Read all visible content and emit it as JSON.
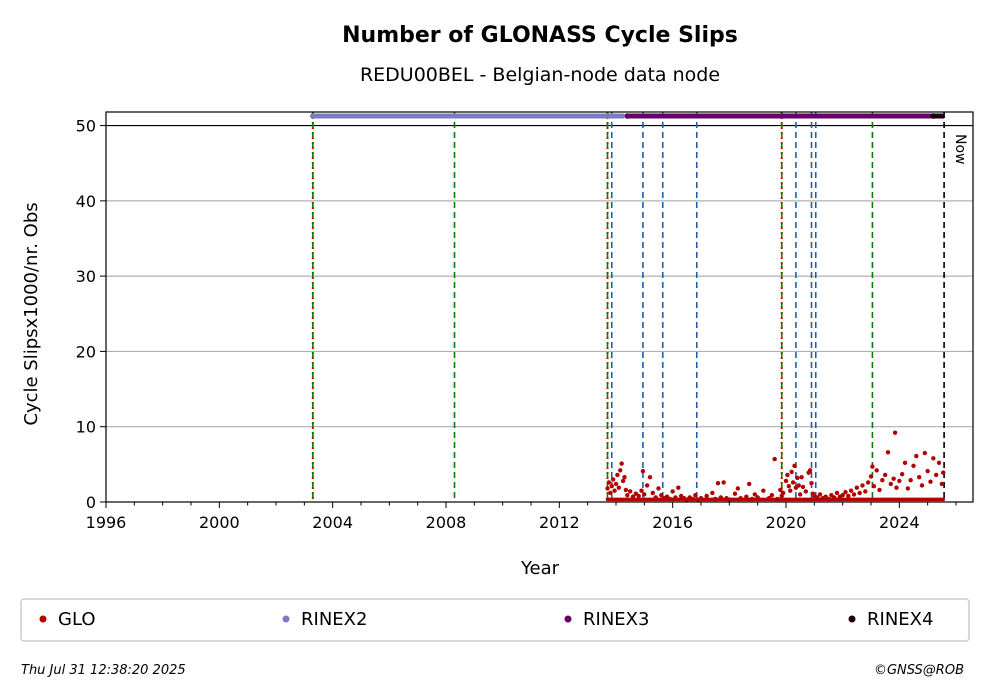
{
  "chart_data": {
    "type": "scatter",
    "title": "Number of GLONASS Cycle Slips",
    "subtitle": "REDU00BEL - Belgian-node data node",
    "xlabel": "Year",
    "ylabel": "Cycle Slipsx1000/nr. Obs",
    "xlim": [
      1996.0,
      2026.6
    ],
    "ylim": [
      0,
      51.8
    ],
    "xticks": [
      1996,
      2000,
      2004,
      2008,
      2012,
      2016,
      2020,
      2024
    ],
    "xtick_labels": [
      "1996",
      "2000",
      "2004",
      "2008",
      "2012",
      "2016",
      "2020",
      "2024"
    ],
    "yticks": [
      0,
      10,
      20,
      30,
      40,
      50
    ],
    "ytick_labels": [
      "0",
      "10",
      "20",
      "30",
      "40",
      "50"
    ],
    "grid": "horizontal",
    "reference_line_y": 50,
    "now_label": "Now",
    "now_x": 2025.58,
    "vlines": [
      {
        "x": 2003.3,
        "colors": [
          "#cc0000",
          "#008000"
        ],
        "style": "dotted-dashed"
      },
      {
        "x": 2008.3,
        "colors": [
          "#008000"
        ],
        "style": "dashed"
      },
      {
        "x": 2013.7,
        "colors": [
          "#cc0000",
          "#008000"
        ],
        "style": "dotted-dashed"
      },
      {
        "x": 2013.85,
        "colors": [
          "#1f5fa8"
        ],
        "style": "dashed"
      },
      {
        "x": 2014.95,
        "colors": [
          "#1f5fa8"
        ],
        "style": "dashed"
      },
      {
        "x": 2015.65,
        "colors": [
          "#1f5fa8"
        ],
        "style": "dashed"
      },
      {
        "x": 2016.85,
        "colors": [
          "#1f5fa8"
        ],
        "style": "dashed"
      },
      {
        "x": 2019.85,
        "colors": [
          "#cc0000",
          "#008000"
        ],
        "style": "dotted-dashed"
      },
      {
        "x": 2020.35,
        "colors": [
          "#1f5fa8"
        ],
        "style": "dashed"
      },
      {
        "x": 2020.9,
        "colors": [
          "#1f5fa8"
        ],
        "style": "dashed"
      },
      {
        "x": 2021.05,
        "colors": [
          "#1f5fa8"
        ],
        "style": "dashed"
      },
      {
        "x": 2023.05,
        "colors": [
          "#008000"
        ],
        "style": "dashed"
      },
      {
        "x": 2025.58,
        "colors": [
          "#000000"
        ],
        "style": "dashed"
      }
    ],
    "rinex_bars": [
      {
        "name": "RINEX2",
        "color": "#7b7bbf",
        "start": 2003.3,
        "end": 2014.3,
        "y": 51
      },
      {
        "name": "RINEX3",
        "color": "#660066",
        "start": 2014.4,
        "end": 2025.3,
        "y": 51
      },
      {
        "name": "RINEX4",
        "color": "#1a0010",
        "start": 2025.2,
        "end": 2025.58,
        "y": 51
      }
    ],
    "series": [
      {
        "name": "GLO",
        "color": "#b30000",
        "coverage": [
          2013.7,
          2025.58
        ],
        "points": [
          [
            2013.7,
            1.8
          ],
          [
            2013.75,
            2.6
          ],
          [
            2013.8,
            1.2
          ],
          [
            2013.85,
            2.1
          ],
          [
            2013.9,
            3.0
          ],
          [
            2013.95,
            1.5
          ],
          [
            2014.0,
            2.4
          ],
          [
            2014.05,
            3.6
          ],
          [
            2014.1,
            1.9
          ],
          [
            2014.15,
            4.2
          ],
          [
            2014.2,
            5.1
          ],
          [
            2014.25,
            2.8
          ],
          [
            2014.3,
            3.3
          ],
          [
            2014.35,
            1.6
          ],
          [
            2014.4,
            0.9
          ],
          [
            2014.5,
            1.4
          ],
          [
            2014.6,
            0.7
          ],
          [
            2014.7,
            1.1
          ],
          [
            2014.8,
            0.8
          ],
          [
            2014.9,
            1.5
          ],
          [
            2014.95,
            4.1
          ],
          [
            2015.0,
            1.0
          ],
          [
            2015.1,
            2.2
          ],
          [
            2015.2,
            3.3
          ],
          [
            2015.3,
            1.2
          ],
          [
            2015.4,
            0.6
          ],
          [
            2015.5,
            1.8
          ],
          [
            2015.6,
            0.9
          ],
          [
            2015.7,
            0.5
          ],
          [
            2015.8,
            0.7
          ],
          [
            2015.9,
            0.4
          ],
          [
            2016.0,
            1.4
          ],
          [
            2016.1,
            0.6
          ],
          [
            2016.2,
            1.9
          ],
          [
            2016.3,
            0.8
          ],
          [
            2016.4,
            0.5
          ],
          [
            2016.5,
            0.3
          ],
          [
            2016.6,
            0.6
          ],
          [
            2016.7,
            0.4
          ],
          [
            2016.8,
            0.9
          ],
          [
            2016.9,
            0.3
          ],
          [
            2017.0,
            0.5
          ],
          [
            2017.2,
            0.8
          ],
          [
            2017.4,
            1.2
          ],
          [
            2017.5,
            0.4
          ],
          [
            2017.6,
            2.5
          ],
          [
            2017.7,
            0.6
          ],
          [
            2017.8,
            2.6
          ],
          [
            2017.9,
            0.5
          ],
          [
            2018.0,
            0.3
          ],
          [
            2018.2,
            1.1
          ],
          [
            2018.3,
            1.8
          ],
          [
            2018.4,
            0.5
          ],
          [
            2018.6,
            0.7
          ],
          [
            2018.7,
            2.4
          ],
          [
            2018.8,
            0.4
          ],
          [
            2018.9,
            1.0
          ],
          [
            2019.0,
            0.6
          ],
          [
            2019.2,
            1.5
          ],
          [
            2019.4,
            0.5
          ],
          [
            2019.5,
            0.9
          ],
          [
            2019.6,
            5.7
          ],
          [
            2019.7,
            0.4
          ],
          [
            2019.8,
            1.6
          ],
          [
            2019.85,
            0.8
          ],
          [
            2019.9,
            1.2
          ],
          [
            2020.0,
            2.8
          ],
          [
            2020.05,
            3.6
          ],
          [
            2020.1,
            2.1
          ],
          [
            2020.15,
            1.5
          ],
          [
            2020.2,
            4.0
          ],
          [
            2020.25,
            2.6
          ],
          [
            2020.3,
            4.8
          ],
          [
            2020.35,
            1.9
          ],
          [
            2020.4,
            3.2
          ],
          [
            2020.45,
            2.2
          ],
          [
            2020.5,
            1.0
          ],
          [
            2020.55,
            3.3
          ],
          [
            2020.6,
            2.0
          ],
          [
            2020.7,
            1.4
          ],
          [
            2020.8,
            3.9
          ],
          [
            2020.85,
            4.2
          ],
          [
            2020.9,
            2.5
          ],
          [
            2020.95,
            1.1
          ],
          [
            2021.0,
            0.8
          ],
          [
            2021.1,
            0.6
          ],
          [
            2021.2,
            1.0
          ],
          [
            2021.3,
            0.5
          ],
          [
            2021.4,
            0.7
          ],
          [
            2021.5,
            0.4
          ],
          [
            2021.6,
            0.9
          ],
          [
            2021.7,
            0.6
          ],
          [
            2021.8,
            1.2
          ],
          [
            2021.9,
            0.7
          ],
          [
            2022.0,
            0.9
          ],
          [
            2022.1,
            1.3
          ],
          [
            2022.2,
            0.8
          ],
          [
            2022.3,
            1.5
          ],
          [
            2022.4,
            1.0
          ],
          [
            2022.5,
            1.9
          ],
          [
            2022.6,
            1.2
          ],
          [
            2022.7,
            2.2
          ],
          [
            2022.8,
            1.4
          ],
          [
            2022.9,
            2.6
          ],
          [
            2023.0,
            3.4
          ],
          [
            2023.05,
            4.7
          ],
          [
            2023.1,
            2.1
          ],
          [
            2023.2,
            4.2
          ],
          [
            2023.3,
            1.6
          ],
          [
            2023.4,
            2.9
          ],
          [
            2023.5,
            3.6
          ],
          [
            2023.6,
            6.6
          ],
          [
            2023.7,
            2.4
          ],
          [
            2023.8,
            3.1
          ],
          [
            2023.85,
            9.2
          ],
          [
            2023.9,
            1.9
          ],
          [
            2024.0,
            2.8
          ],
          [
            2024.1,
            3.7
          ],
          [
            2024.2,
            5.2
          ],
          [
            2024.3,
            1.8
          ],
          [
            2024.4,
            2.9
          ],
          [
            2024.5,
            4.8
          ],
          [
            2024.6,
            6.1
          ],
          [
            2024.7,
            3.3
          ],
          [
            2024.8,
            2.2
          ],
          [
            2024.9,
            6.5
          ],
          [
            2025.0,
            4.1
          ],
          [
            2025.1,
            2.7
          ],
          [
            2025.2,
            5.8
          ],
          [
            2025.3,
            3.6
          ],
          [
            2025.4,
            5.2
          ],
          [
            2025.5,
            2.4
          ],
          [
            2025.55,
            3.9
          ]
        ]
      }
    ],
    "legend": {
      "position": "bottom",
      "entries": [
        {
          "label": "GLO",
          "color": "#b30000"
        },
        {
          "label": "RINEX2",
          "color": "#7b7bbf"
        },
        {
          "label": "RINEX3",
          "color": "#660066"
        },
        {
          "label": "RINEX4",
          "color": "#1a0010"
        }
      ]
    }
  },
  "footer": {
    "timestamp": "Thu Jul 31 12:38:20 2025",
    "copyright": "©GNSS@ROB"
  }
}
